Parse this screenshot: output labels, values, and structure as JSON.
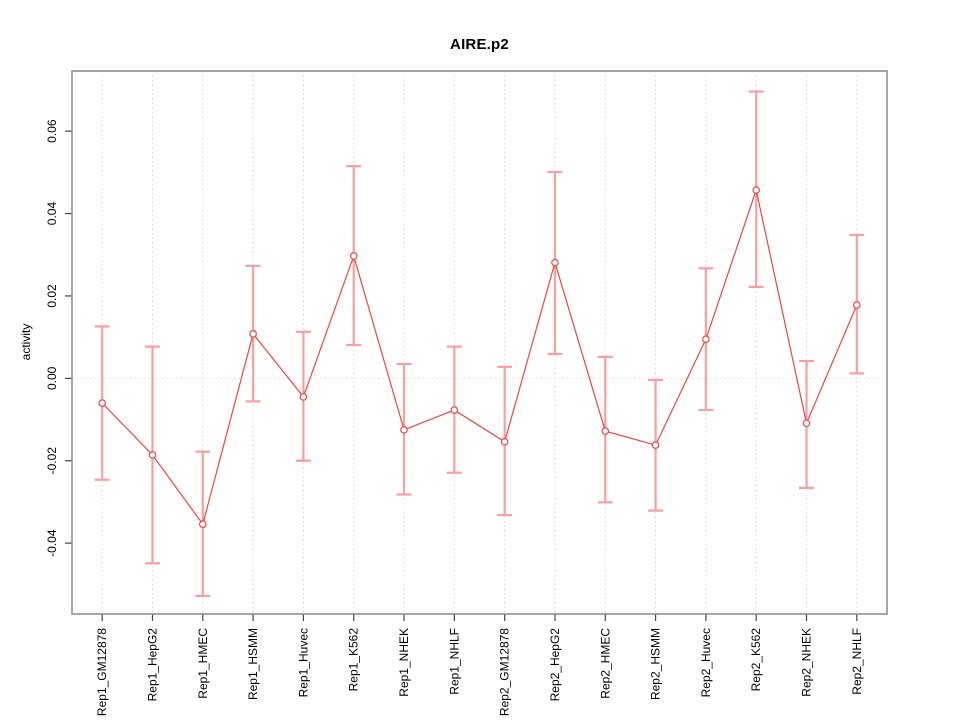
{
  "chart_data": {
    "type": "line",
    "title": "AIRE.p2",
    "xlabel": "",
    "ylabel": "activity",
    "legend_position": "none",
    "grid": {
      "vertical_dotted_per_category": true,
      "horizontal_dotted_zero_line": true
    },
    "categories": [
      "Rep1_GM12878",
      "Rep1_HepG2",
      "Rep1_HMEC",
      "Rep1_HSMM",
      "Rep1_Huvec",
      "Rep1_K562",
      "Rep1_NHEK",
      "Rep1_NHLF",
      "Rep2_GM12878",
      "Rep2_HepG2",
      "Rep2_HMEC",
      "Rep2_HSMM",
      "Rep2_Huvec",
      "Rep2_K562",
      "Rep2_NHEK",
      "Rep2_NHLF"
    ],
    "series": [
      {
        "name": "activity",
        "values": [
          -0.006,
          -0.0186,
          -0.0354,
          0.0108,
          -0.0045,
          0.0297,
          -0.0125,
          -0.0077,
          -0.0154,
          0.0281,
          -0.0128,
          -0.0162,
          0.0095,
          0.0457,
          -0.0109,
          0.0178
        ],
        "upper": [
          0.0126,
          0.0077,
          -0.0178,
          0.0273,
          0.0113,
          0.0515,
          0.0035,
          0.0077,
          0.0028,
          0.0501,
          0.0052,
          -0.0004,
          0.0267,
          0.0696,
          0.0042,
          0.0348
        ],
        "lower": [
          -0.0246,
          -0.0449,
          -0.0528,
          -0.0056,
          -0.02,
          0.0081,
          -0.0282,
          -0.0229,
          -0.0332,
          0.0059,
          -0.0301,
          -0.0321,
          -0.0077,
          0.0222,
          -0.0266,
          0.0012
        ]
      }
    ],
    "yticks": [
      -0.04,
      -0.02,
      0.0,
      0.02,
      0.04,
      0.06
    ],
    "ylim": [
      -0.0572,
      0.0746
    ],
    "colors": {
      "point_and_line": "#f04540",
      "error_bar": "#f99f9f",
      "gridline": "#dadada",
      "zero_line": "#e2dcdc",
      "box": "#8a8a8a",
      "tick": "#444444",
      "text": "#000000",
      "background": "#ffffff"
    }
  }
}
